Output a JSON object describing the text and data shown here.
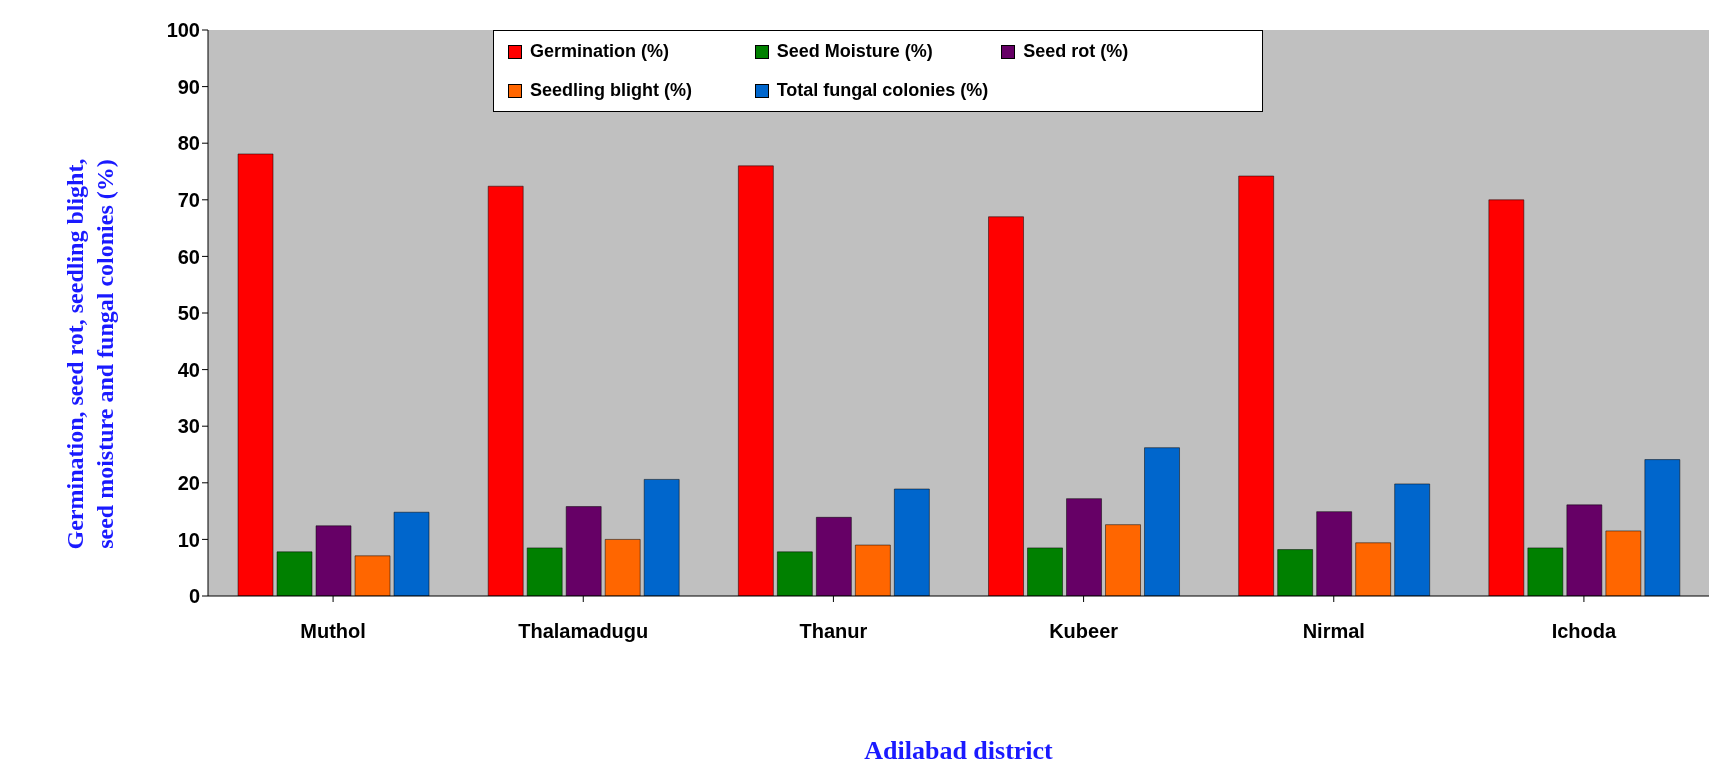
{
  "chart_data": {
    "type": "bar",
    "xlabel": "Adilabad district",
    "ylabel": "Germination, seed rot, seedling blight, seed moisture and fungal colonies (%)",
    "categories": [
      "Muthol",
      "Thalamadugu",
      "Thanur",
      "Kubeer",
      "Nirmal",
      "Ichoda"
    ],
    "series": [
      {
        "name": "Germination (%)",
        "color": "#ff0000",
        "values": [
          78.1,
          72.4,
          76.0,
          67.0,
          74.2,
          70.0
        ]
      },
      {
        "name": "Seed Moisture (%)",
        "color": "#008000",
        "values": [
          7.8,
          8.5,
          7.8,
          8.5,
          8.2,
          8.5
        ]
      },
      {
        "name": "Seed rot (%)",
        "color": "#660066",
        "values": [
          12.4,
          15.8,
          13.9,
          17.2,
          14.9,
          16.1
        ]
      },
      {
        "name": "Seedling blight (%)",
        "color": "#ff6600",
        "values": [
          7.1,
          10.0,
          9.0,
          12.6,
          9.4,
          11.5
        ]
      },
      {
        "name": "Total fungal colonies (%)",
        "color": "#0066cc",
        "values": [
          14.8,
          20.6,
          18.9,
          26.2,
          19.8,
          24.1
        ]
      }
    ],
    "ylim": [
      0,
      100
    ],
    "yticks": [
      0,
      10,
      20,
      30,
      40,
      50,
      60,
      70,
      80,
      90,
      100
    ],
    "legend": "top",
    "grid": false
  }
}
